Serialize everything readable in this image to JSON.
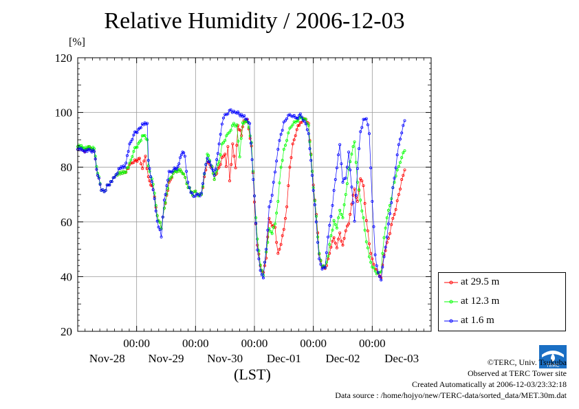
{
  "chart_data": {
    "type": "line",
    "title": "Relative Humidity / 2006-12-03",
    "ylabel": "[%]",
    "xlabel": "(LST)",
    "ylim": [
      20,
      120
    ],
    "yticks": [
      "20",
      "40",
      "60",
      "80",
      "100",
      "120"
    ],
    "x_unit": "days",
    "xlim": [
      0.0,
      6.0
    ],
    "xticks": [
      {
        "day": 1.0,
        "time": "00:00",
        "date": "Nov-29"
      },
      {
        "day": 2.0,
        "time": "00:00",
        "date": "Nov-30"
      },
      {
        "day": 3.0,
        "time": "00:00",
        "date": "Dec-01"
      },
      {
        "day": 4.0,
        "time": "00:00",
        "date": "Dec-02"
      },
      {
        "day": 5.0,
        "time": "00:00",
        "date": "Dec-03"
      }
    ],
    "date_labels": [
      {
        "day": 0.5,
        "label": "Nov-28"
      },
      {
        "day": 1.5,
        "label": "Nov-29"
      },
      {
        "day": 2.5,
        "label": "Nov-30"
      },
      {
        "day": 3.5,
        "label": "Dec-01"
      },
      {
        "day": 4.5,
        "label": "Dec-02"
      },
      {
        "day": 5.5,
        "label": "Dec-03"
      }
    ],
    "grid": true,
    "legend_position": "right, below plot",
    "series": [
      {
        "name": "at 29.5 m",
        "color": "#ff0000",
        "points": [
          [
            0.0,
            87
          ],
          [
            0.1,
            86
          ],
          [
            0.2,
            87
          ],
          [
            0.28,
            86
          ],
          [
            0.32,
            79
          ],
          [
            0.4,
            72
          ],
          [
            0.45,
            71
          ],
          [
            0.5,
            73
          ],
          [
            0.58,
            75
          ],
          [
            0.65,
            77
          ],
          [
            0.72,
            78
          ],
          [
            0.8,
            78
          ],
          [
            0.9,
            81
          ],
          [
            0.95,
            82
          ],
          [
            1.05,
            83
          ],
          [
            1.1,
            80
          ],
          [
            1.15,
            84
          ],
          [
            1.2,
            76
          ],
          [
            1.28,
            72
          ],
          [
            1.35,
            62
          ],
          [
            1.42,
            58
          ],
          [
            1.47,
            65
          ],
          [
            1.55,
            74
          ],
          [
            1.62,
            78
          ],
          [
            1.7,
            79
          ],
          [
            1.8,
            78
          ],
          [
            1.85,
            74
          ],
          [
            1.9,
            72
          ],
          [
            1.95,
            70
          ],
          [
            2.0,
            71
          ],
          [
            2.05,
            70
          ],
          [
            2.1,
            70
          ],
          [
            2.15,
            76
          ],
          [
            2.2,
            82
          ],
          [
            2.28,
            80
          ],
          [
            2.32,
            76
          ],
          [
            2.4,
            80
          ],
          [
            2.45,
            83
          ],
          [
            2.5,
            85
          ],
          [
            2.52,
            80
          ],
          [
            2.55,
            88
          ],
          [
            2.58,
            75
          ],
          [
            2.63,
            88
          ],
          [
            2.68,
            80
          ],
          [
            2.72,
            95
          ],
          [
            2.78,
            92
          ],
          [
            2.82,
            97
          ],
          [
            2.88,
            97
          ],
          [
            2.95,
            88
          ],
          [
            3.0,
            67
          ],
          [
            3.05,
            52
          ],
          [
            3.1,
            44
          ],
          [
            3.15,
            41
          ],
          [
            3.2,
            47
          ],
          [
            3.25,
            61
          ],
          [
            3.3,
            59
          ],
          [
            3.35,
            58
          ],
          [
            3.4,
            48
          ],
          [
            3.45,
            52
          ],
          [
            3.5,
            57
          ],
          [
            3.55,
            66
          ],
          [
            3.6,
            80
          ],
          [
            3.65,
            88
          ],
          [
            3.72,
            94
          ],
          [
            3.78,
            96
          ],
          [
            3.85,
            98
          ],
          [
            3.92,
            96
          ],
          [
            4.0,
            73
          ],
          [
            4.05,
            63
          ],
          [
            4.1,
            48
          ],
          [
            4.15,
            44
          ],
          [
            4.2,
            43
          ],
          [
            4.25,
            46
          ],
          [
            4.3,
            51
          ],
          [
            4.35,
            54
          ],
          [
            4.4,
            51
          ],
          [
            4.45,
            56
          ],
          [
            4.5,
            51
          ],
          [
            4.55,
            57
          ],
          [
            4.6,
            59
          ],
          [
            4.65,
            67
          ],
          [
            4.7,
            72
          ],
          [
            4.75,
            67
          ],
          [
            4.8,
            76
          ],
          [
            4.85,
            73
          ],
          [
            4.9,
            61
          ],
          [
            4.95,
            52
          ],
          [
            5.0,
            46
          ],
          [
            5.05,
            43
          ],
          [
            5.1,
            41
          ],
          [
            5.15,
            40
          ],
          [
            5.2,
            48
          ],
          [
            5.25,
            52
          ],
          [
            5.3,
            56
          ],
          [
            5.35,
            61
          ],
          [
            5.4,
            65
          ],
          [
            5.45,
            70
          ],
          [
            5.5,
            75
          ],
          [
            5.55,
            79
          ]
        ]
      },
      {
        "name": "at 12.3 m",
        "color": "#00ff00",
        "points": [
          [
            0.0,
            88
          ],
          [
            0.1,
            87
          ],
          [
            0.2,
            87
          ],
          [
            0.28,
            87
          ],
          [
            0.32,
            80
          ],
          [
            0.4,
            72
          ],
          [
            0.45,
            71
          ],
          [
            0.5,
            73
          ],
          [
            0.58,
            75
          ],
          [
            0.65,
            77
          ],
          [
            0.72,
            78
          ],
          [
            0.8,
            78
          ],
          [
            0.88,
            81
          ],
          [
            0.95,
            86
          ],
          [
            1.05,
            89
          ],
          [
            1.12,
            92
          ],
          [
            1.18,
            90
          ],
          [
            1.2,
            80
          ],
          [
            1.28,
            74
          ],
          [
            1.35,
            62
          ],
          [
            1.42,
            58
          ],
          [
            1.47,
            65
          ],
          [
            1.55,
            75
          ],
          [
            1.62,
            78
          ],
          [
            1.7,
            79
          ],
          [
            1.8,
            78
          ],
          [
            1.85,
            74
          ],
          [
            1.9,
            72
          ],
          [
            1.95,
            70
          ],
          [
            2.0,
            71
          ],
          [
            2.05,
            70
          ],
          [
            2.1,
            70
          ],
          [
            2.15,
            77
          ],
          [
            2.2,
            85
          ],
          [
            2.28,
            80
          ],
          [
            2.32,
            76
          ],
          [
            2.4,
            82
          ],
          [
            2.45,
            88
          ],
          [
            2.5,
            90
          ],
          [
            2.55,
            92
          ],
          [
            2.6,
            94
          ],
          [
            2.65,
            96
          ],
          [
            2.7,
            95
          ],
          [
            2.75,
            84
          ],
          [
            2.8,
            96
          ],
          [
            2.88,
            97
          ],
          [
            2.95,
            89
          ],
          [
            3.0,
            69
          ],
          [
            3.05,
            54
          ],
          [
            3.1,
            44
          ],
          [
            3.15,
            41
          ],
          [
            3.2,
            49
          ],
          [
            3.25,
            57
          ],
          [
            3.3,
            56
          ],
          [
            3.35,
            59
          ],
          [
            3.4,
            68
          ],
          [
            3.45,
            80
          ],
          [
            3.5,
            86
          ],
          [
            3.55,
            90
          ],
          [
            3.6,
            94
          ],
          [
            3.65,
            96
          ],
          [
            3.72,
            97
          ],
          [
            3.78,
            98
          ],
          [
            3.85,
            98
          ],
          [
            3.92,
            95
          ],
          [
            4.0,
            73
          ],
          [
            4.05,
            62
          ],
          [
            4.1,
            48
          ],
          [
            4.15,
            44
          ],
          [
            4.2,
            43
          ],
          [
            4.25,
            48
          ],
          [
            4.3,
            55
          ],
          [
            4.35,
            60
          ],
          [
            4.4,
            58
          ],
          [
            4.45,
            64
          ],
          [
            4.5,
            62
          ],
          [
            4.55,
            70
          ],
          [
            4.6,
            79
          ],
          [
            4.65,
            85
          ],
          [
            4.7,
            89
          ],
          [
            4.75,
            75
          ],
          [
            4.8,
            68
          ],
          [
            4.85,
            61
          ],
          [
            4.9,
            53
          ],
          [
            4.95,
            47
          ],
          [
            5.0,
            44
          ],
          [
            5.05,
            42
          ],
          [
            5.1,
            41
          ],
          [
            5.15,
            42
          ],
          [
            5.2,
            54
          ],
          [
            5.25,
            62
          ],
          [
            5.3,
            66
          ],
          [
            5.35,
            72
          ],
          [
            5.4,
            77
          ],
          [
            5.45,
            80
          ],
          [
            5.5,
            84
          ],
          [
            5.55,
            86
          ]
        ]
      },
      {
        "name": "at 1.6 m",
        "color": "#0000ff",
        "points": [
          [
            0.0,
            87
          ],
          [
            0.1,
            86
          ],
          [
            0.2,
            86
          ],
          [
            0.28,
            86
          ],
          [
            0.32,
            79
          ],
          [
            0.4,
            72
          ],
          [
            0.45,
            71
          ],
          [
            0.5,
            73
          ],
          [
            0.58,
            75
          ],
          [
            0.65,
            77
          ],
          [
            0.72,
            80
          ],
          [
            0.8,
            80
          ],
          [
            0.88,
            88
          ],
          [
            0.95,
            92
          ],
          [
            1.05,
            94
          ],
          [
            1.12,
            96
          ],
          [
            1.18,
            96
          ],
          [
            1.2,
            82
          ],
          [
            1.28,
            72
          ],
          [
            1.35,
            60
          ],
          [
            1.42,
            55
          ],
          [
            1.47,
            68
          ],
          [
            1.55,
            78
          ],
          [
            1.62,
            79
          ],
          [
            1.7,
            80
          ],
          [
            1.78,
            86
          ],
          [
            1.82,
            84
          ],
          [
            1.87,
            74
          ],
          [
            1.92,
            71
          ],
          [
            1.97,
            69
          ],
          [
            2.0,
            70
          ],
          [
            2.05,
            70
          ],
          [
            2.1,
            70
          ],
          [
            2.15,
            78
          ],
          [
            2.2,
            83
          ],
          [
            2.28,
            80
          ],
          [
            2.32,
            77
          ],
          [
            2.4,
            88
          ],
          [
            2.45,
            96
          ],
          [
            2.5,
            99
          ],
          [
            2.55,
            100
          ],
          [
            2.6,
            101
          ],
          [
            2.65,
            100
          ],
          [
            2.7,
            100
          ],
          [
            2.78,
            99
          ],
          [
            2.85,
            98
          ],
          [
            2.92,
            96
          ],
          [
            3.0,
            69
          ],
          [
            3.05,
            50
          ],
          [
            3.1,
            42
          ],
          [
            3.15,
            40
          ],
          [
            3.2,
            50
          ],
          [
            3.25,
            65
          ],
          [
            3.3,
            70
          ],
          [
            3.35,
            78
          ],
          [
            3.4,
            87
          ],
          [
            3.45,
            92
          ],
          [
            3.5,
            96
          ],
          [
            3.55,
            98
          ],
          [
            3.6,
            99
          ],
          [
            3.65,
            99
          ],
          [
            3.72,
            98
          ],
          [
            3.78,
            99
          ],
          [
            3.85,
            97
          ],
          [
            3.92,
            92
          ],
          [
            4.0,
            72
          ],
          [
            4.05,
            60
          ],
          [
            4.1,
            46
          ],
          [
            4.15,
            43
          ],
          [
            4.2,
            43
          ],
          [
            4.25,
            55
          ],
          [
            4.3,
            62
          ],
          [
            4.35,
            71
          ],
          [
            4.4,
            80
          ],
          [
            4.45,
            88
          ],
          [
            4.5,
            75
          ],
          [
            4.55,
            76
          ],
          [
            4.6,
            85
          ],
          [
            4.65,
            73
          ],
          [
            4.7,
            60
          ],
          [
            4.75,
            80
          ],
          [
            4.8,
            93
          ],
          [
            4.85,
            97
          ],
          [
            4.9,
            98
          ],
          [
            4.95,
            92
          ],
          [
            5.0,
            68
          ],
          [
            5.05,
            48
          ],
          [
            5.1,
            41
          ],
          [
            5.15,
            39
          ],
          [
            5.2,
            47
          ],
          [
            5.25,
            55
          ],
          [
            5.3,
            63
          ],
          [
            5.35,
            72
          ],
          [
            5.4,
            80
          ],
          [
            5.45,
            88
          ],
          [
            5.5,
            93
          ],
          [
            5.55,
            97
          ]
        ]
      }
    ]
  },
  "legend": {
    "items": [
      {
        "label": "at 29.5 m",
        "color": "#ff0000"
      },
      {
        "label": "at 12.3 m",
        "color": "#00ff00"
      },
      {
        "label": "at 1.6 m",
        "color": "#0000ff"
      }
    ]
  },
  "logo": {
    "text": "TERC",
    "color": "#1a6fc4"
  },
  "credits": {
    "line1": "©TERC, Univ. Tsukuba",
    "line2": "Observed at TERC Tower site",
    "line3": "Created Automatically at 2006-12-03/23:32:18",
    "line4": "Data source : /home/hojyo/new/TERC-data/sorted_data/MET.30m.dat"
  }
}
